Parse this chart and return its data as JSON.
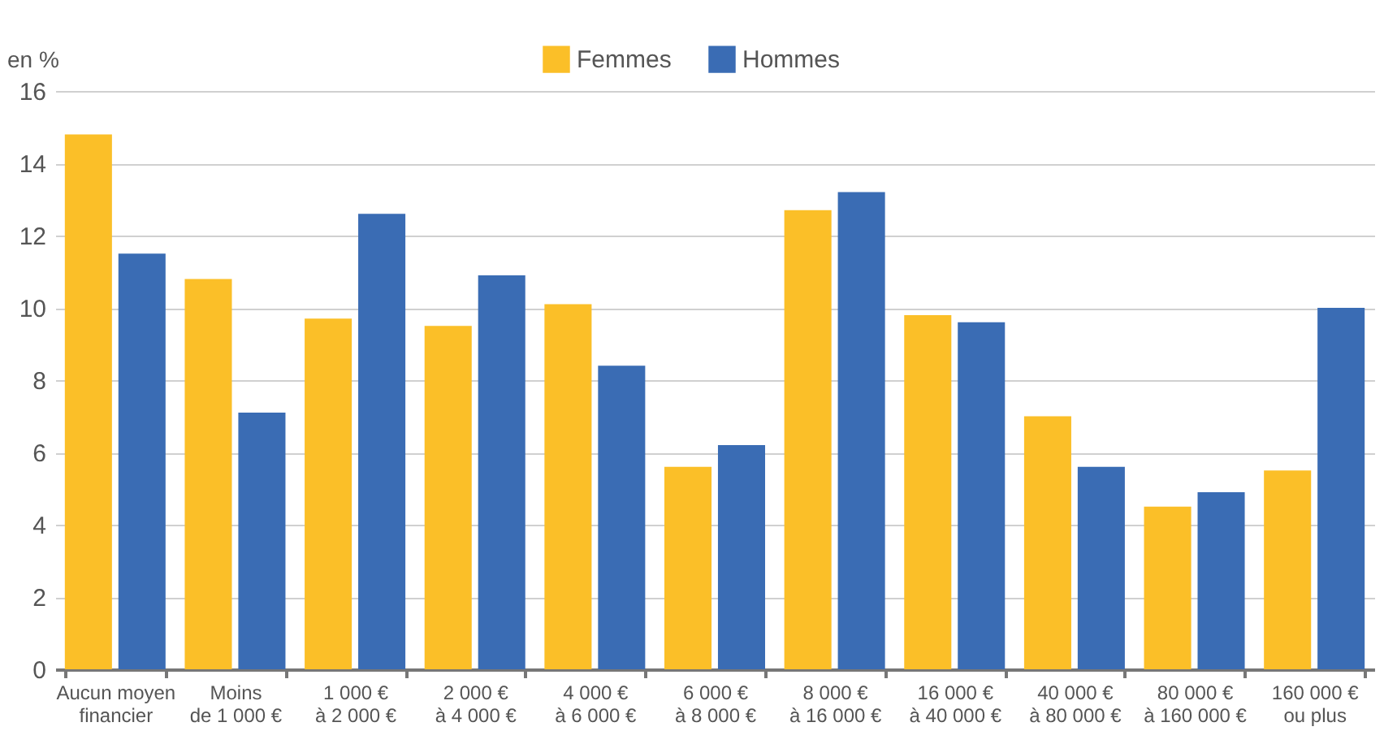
{
  "chart_data": {
    "type": "bar",
    "ylabel": "en %",
    "categories": [
      "Aucun moyen\nfinancier",
      "Moins\nde 1 000 €",
      "1 000 €\nà 2 000 €",
      "2 000 €\nà 4 000 €",
      "4 000 €\nà 6 000 €",
      "6 000 €\nà 8 000 €",
      "8 000 €\nà 16 000 €",
      "16 000 €\nà 40 000 €",
      "40 000 €\nà 80 000 €",
      "80 000 €\nà 160 000 €",
      "160 000 €\nou plus"
    ],
    "series": [
      {
        "name": "Femmes",
        "color": "#fbbf28",
        "values": [
          14.8,
          10.8,
          9.7,
          9.5,
          10.1,
          5.6,
          12.7,
          9.8,
          7.0,
          4.5,
          5.5
        ]
      },
      {
        "name": "Hommes",
        "color": "#3a6cb4",
        "values": [
          11.5,
          7.1,
          12.6,
          10.9,
          8.4,
          6.2,
          13.2,
          9.6,
          5.6,
          4.9,
          10.0
        ]
      }
    ],
    "ylim": [
      0,
      16
    ],
    "yticks": [
      0,
      2,
      4,
      6,
      8,
      10,
      12,
      14,
      16
    ],
    "grid": "y",
    "legend": "top"
  }
}
